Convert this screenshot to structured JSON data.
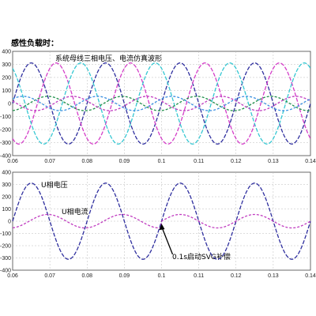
{
  "caption": "感性负载时：",
  "chart_data": [
    {
      "type": "line",
      "title": "系统母线三相电压、电流仿真波形",
      "xlim": [
        0.06,
        0.14
      ],
      "ylim": [
        -400,
        400
      ],
      "x_ticks": [
        "0.06",
        "0.07",
        "0.08",
        "0.09",
        "0.1",
        "0.11",
        "0.12",
        "0.13",
        "0.14"
      ],
      "y_ticks": [
        "400",
        "300",
        "200",
        "100",
        "0",
        "-100",
        "-200",
        "-300",
        "-400"
      ],
      "grid": true,
      "frequency_hz": 50,
      "series": [
        {
          "kind": "voltage",
          "phase": "A",
          "amplitude": 311,
          "phase_deg": 0,
          "color": "#2e2e9e",
          "dash": "5,2"
        },
        {
          "kind": "voltage",
          "phase": "B",
          "amplitude": 311,
          "phase_deg": -120,
          "color": "#d43dc8",
          "dash": "5,2"
        },
        {
          "kind": "voltage",
          "phase": "C",
          "amplitude": 311,
          "phase_deg": 120,
          "color": "#35c7d2",
          "dash": "5,2"
        },
        {
          "kind": "current",
          "phase": "A",
          "amplitude": 55,
          "phase_deg": -80,
          "color": "#1e8f4a",
          "dash": "3,2"
        },
        {
          "kind": "current",
          "phase": "B",
          "amplitude": 55,
          "phase_deg": 160,
          "color": "#c03bc0",
          "dash": "3,2"
        },
        {
          "kind": "current",
          "phase": "C",
          "amplitude": 55,
          "phase_deg": 40,
          "color": "#3a8fe0",
          "dash": "3,2"
        }
      ]
    },
    {
      "type": "line",
      "xlim": [
        0.06,
        0.14
      ],
      "ylim": [
        -400,
        400
      ],
      "x_ticks": [
        "0.06",
        "0.07",
        "0.08",
        "0.09",
        "0.1",
        "0.11",
        "0.12",
        "0.13",
        "0.14"
      ],
      "y_ticks": [
        "400",
        "300",
        "200",
        "100",
        "0",
        "-100",
        "-200",
        "-300",
        "-400"
      ],
      "grid": true,
      "frequency_hz": 50,
      "series": [
        {
          "name": "U相电压",
          "amplitude": 311,
          "phase_deg": 0,
          "color": "#2e2e9e",
          "dash": "5,2"
        },
        {
          "name": "U相电流",
          "amplitude": 55,
          "phase_deg": -80,
          "phase_deg_after": 0,
          "switch_time": 0.1,
          "color": "#c03bc0",
          "dash": "3,2"
        }
      ],
      "annotation": {
        "text": "0.1s启动SVG补偿",
        "x": 0.1,
        "y": -20
      }
    }
  ]
}
